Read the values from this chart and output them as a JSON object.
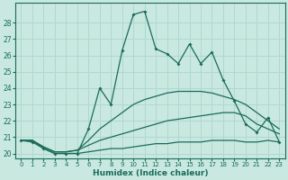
{
  "xlabel": "Humidex (Indice chaleur)",
  "xlim": [
    -0.5,
    23.5
  ],
  "ylim": [
    19.7,
    29.2
  ],
  "yticks": [
    20,
    21,
    22,
    23,
    24,
    25,
    26,
    27,
    28
  ],
  "xticks": [
    0,
    1,
    2,
    3,
    4,
    5,
    6,
    7,
    8,
    9,
    10,
    11,
    12,
    13,
    14,
    15,
    16,
    17,
    18,
    19,
    20,
    21,
    22,
    23
  ],
  "bg_color": "#c8e8e0",
  "grid_color": "#b0d8ce",
  "line_color": "#1a6b5a",
  "lines": [
    {
      "x": [
        0,
        1,
        2,
        3,
        4,
        5,
        6,
        7,
        8,
        9,
        10,
        11,
        12,
        13,
        14,
        15,
        16,
        17,
        18,
        19,
        20,
        21,
        22,
        23
      ],
      "y": [
        20.8,
        20.8,
        20.3,
        20.0,
        20.0,
        20.0,
        20.1,
        20.2,
        20.3,
        20.3,
        20.4,
        20.5,
        20.6,
        20.6,
        20.7,
        20.7,
        20.7,
        20.8,
        20.8,
        20.8,
        20.7,
        20.7,
        20.8,
        20.7
      ],
      "marker": false
    },
    {
      "x": [
        0,
        1,
        2,
        3,
        4,
        5,
        6,
        7,
        8,
        9,
        10,
        11,
        12,
        13,
        14,
        15,
        16,
        17,
        18,
        19,
        20,
        21,
        22,
        23
      ],
      "y": [
        20.8,
        20.8,
        20.4,
        20.1,
        20.1,
        20.2,
        20.5,
        20.8,
        21.0,
        21.2,
        21.4,
        21.6,
        21.8,
        22.0,
        22.1,
        22.2,
        22.3,
        22.4,
        22.5,
        22.5,
        22.3,
        21.8,
        21.5,
        21.2
      ],
      "marker": false
    },
    {
      "x": [
        0,
        1,
        2,
        3,
        4,
        5,
        6,
        7,
        8,
        9,
        10,
        11,
        12,
        13,
        14,
        15,
        16,
        17,
        18,
        19,
        20,
        21,
        22,
        23
      ],
      "y": [
        20.8,
        20.8,
        20.4,
        20.1,
        20.1,
        20.2,
        20.8,
        21.5,
        22.0,
        22.5,
        23.0,
        23.3,
        23.5,
        23.7,
        23.8,
        23.8,
        23.8,
        23.7,
        23.5,
        23.3,
        23.0,
        22.5,
        22.0,
        21.5
      ],
      "marker": false
    },
    {
      "x": [
        0,
        1,
        2,
        3,
        4,
        5,
        6,
        7,
        8,
        9,
        10,
        11,
        12,
        13,
        14,
        15,
        16,
        17,
        18,
        19,
        20,
        21,
        22,
        23
      ],
      "y": [
        20.8,
        20.7,
        20.3,
        20.0,
        20.0,
        20.0,
        21.5,
        24.0,
        23.0,
        26.3,
        28.5,
        28.7,
        26.4,
        26.1,
        25.5,
        26.7,
        25.5,
        26.2,
        24.5,
        23.2,
        21.8,
        21.3,
        22.2,
        20.7
      ],
      "marker": true
    }
  ]
}
